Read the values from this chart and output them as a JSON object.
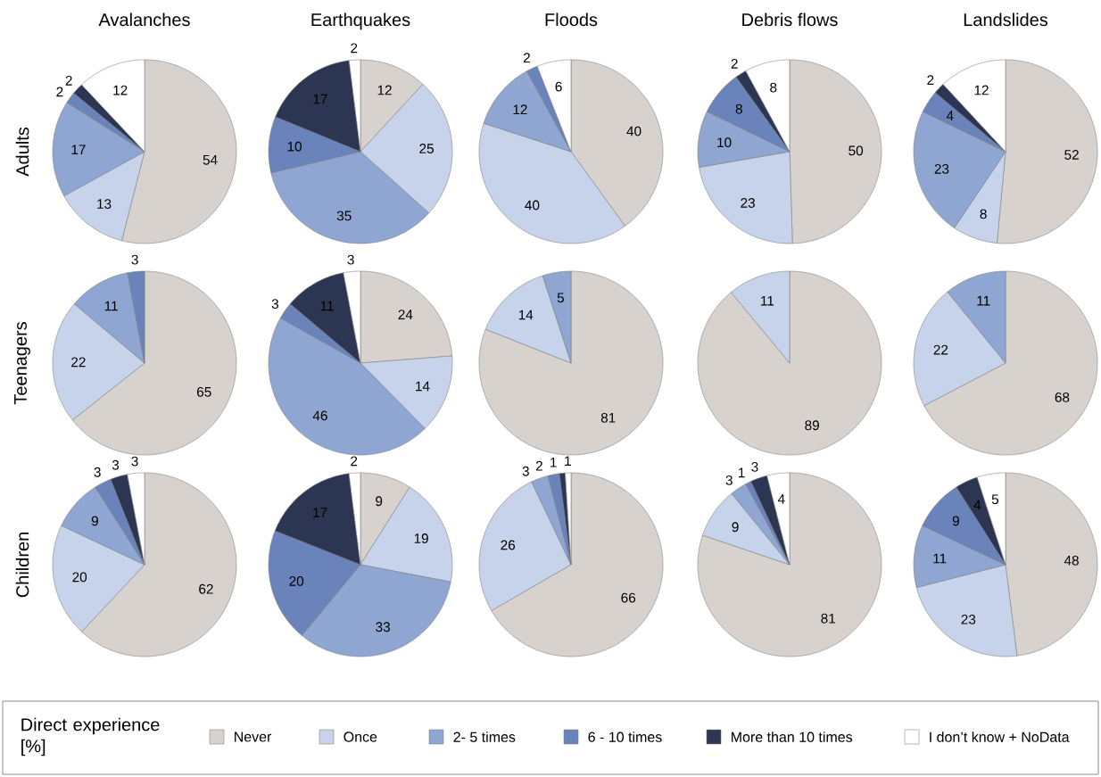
{
  "chart_data": [
    {
      "type": "pie",
      "title": "Avalanches",
      "ylabel": "Adults",
      "categories": [
        "Never",
        "Once",
        "2- 5 times",
        "6 - 10 times",
        "More than 10 times",
        "I don’t know + NoData"
      ],
      "values": [
        54,
        13,
        17,
        2,
        2,
        12
      ],
      "colors": [
        "#d7d2cd",
        "#c6d3ea",
        "#8fa6d2",
        "#6a83ba",
        "#2c3652",
        "#ffffff"
      ],
      "data_labels": true,
      "legend": "bottom",
      "legend_title": "Direct experience [%]"
    },
    {
      "type": "pie",
      "title": "Earthquakes",
      "values": [
        12,
        25,
        35,
        10,
        17,
        2
      ],
      "colors": [
        "#d7d2cd",
        "#c6d3ea",
        "#8fa6d2",
        "#6a83ba",
        "#2c3652",
        "#ffffff"
      ],
      "data_labels": true
    },
    {
      "type": "pie",
      "title": "Floods",
      "values": [
        40,
        40,
        12,
        2,
        null,
        6
      ],
      "colors": [
        "#d7d2cd",
        "#c6d3ea",
        "#8fa6d2",
        "#6a83ba",
        "#2c3652",
        "#ffffff"
      ],
      "data_labels": true
    },
    {
      "type": "pie",
      "title": "Debris flows",
      "values": [
        50,
        23,
        10,
        8,
        2,
        8
      ],
      "colors": [
        "#d7d2cd",
        "#c6d3ea",
        "#8fa6d2",
        "#6a83ba",
        "#2c3652",
        "#ffffff"
      ],
      "data_labels": true
    },
    {
      "type": "pie",
      "title": "Landslides",
      "values": [
        52,
        8,
        23,
        4,
        2,
        12
      ],
      "colors": [
        "#d7d2cd",
        "#c6d3ea",
        "#8fa6d2",
        "#6a83ba",
        "#2c3652",
        "#ffffff"
      ],
      "data_labels": true
    },
    {
      "type": "pie",
      "ylabel": "Teenagers",
      "values": [
        65,
        22,
        11,
        3,
        null,
        null
      ],
      "colors": [
        "#d7d2cd",
        "#c6d3ea",
        "#8fa6d2",
        "#6a83ba",
        "#2c3652",
        "#ffffff"
      ],
      "data_labels": true
    },
    {
      "type": "pie",
      "values": [
        24,
        14,
        46,
        3,
        11,
        3
      ],
      "colors": [
        "#d7d2cd",
        "#c6d3ea",
        "#8fa6d2",
        "#6a83ba",
        "#2c3652",
        "#ffffff"
      ],
      "data_labels": true
    },
    {
      "type": "pie",
      "values": [
        81,
        14,
        5,
        null,
        null,
        null
      ],
      "colors": [
        "#d7d2cd",
        "#c6d3ea",
        "#8fa6d2",
        "#6a83ba",
        "#2c3652",
        "#ffffff"
      ],
      "data_labels": true
    },
    {
      "type": "pie",
      "values": [
        89,
        11,
        null,
        null,
        null,
        null
      ],
      "colors": [
        "#d7d2cd",
        "#c6d3ea",
        "#8fa6d2",
        "#6a83ba",
        "#2c3652",
        "#ffffff"
      ],
      "data_labels": true
    },
    {
      "type": "pie",
      "values": [
        68,
        22,
        11,
        null,
        null,
        null
      ],
      "colors": [
        "#d7d2cd",
        "#c6d3ea",
        "#8fa6d2",
        "#6a83ba",
        "#2c3652",
        "#ffffff"
      ],
      "data_labels": true
    },
    {
      "type": "pie",
      "ylabel": "Children",
      "values": [
        62,
        20,
        9,
        3,
        3,
        3
      ],
      "colors": [
        "#d7d2cd",
        "#c6d3ea",
        "#8fa6d2",
        "#6a83ba",
        "#2c3652",
        "#ffffff"
      ],
      "data_labels": true
    },
    {
      "type": "pie",
      "values": [
        9,
        19,
        33,
        20,
        17,
        2
      ],
      "colors": [
        "#d7d2cd",
        "#c6d3ea",
        "#8fa6d2",
        "#6a83ba",
        "#2c3652",
        "#ffffff"
      ],
      "data_labels": true
    },
    {
      "type": "pie",
      "values": [
        66,
        26,
        3,
        2,
        1,
        1
      ],
      "colors": [
        "#d7d2cd",
        "#c6d3ea",
        "#8fa6d2",
        "#6a83ba",
        "#2c3652",
        "#ffffff"
      ],
      "data_labels": true
    },
    {
      "type": "pie",
      "values": [
        81,
        9,
        3,
        1,
        3,
        4
      ],
      "colors": [
        "#d7d2cd",
        "#c6d3ea",
        "#8fa6d2",
        "#6a83ba",
        "#2c3652",
        "#ffffff"
      ],
      "data_labels": true
    },
    {
      "type": "pie",
      "values": [
        48,
        23,
        11,
        9,
        4,
        5
      ],
      "colors": [
        "#d7d2cd",
        "#c6d3ea",
        "#8fa6d2",
        "#6a83ba",
        "#2c3652",
        "#ffffff"
      ],
      "data_labels": true
    }
  ]
}
